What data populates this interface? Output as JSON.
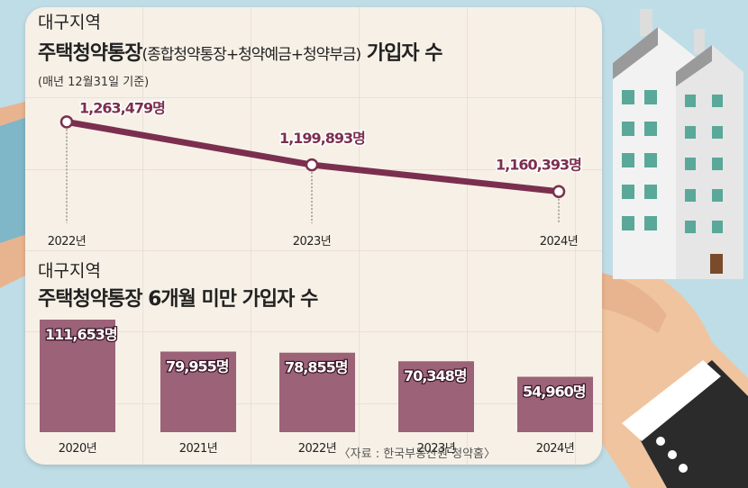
{
  "colors": {
    "background": "#bfdde6",
    "card": "#f7f0e6",
    "accent": "#7b2f4f",
    "bar": "#9b6278"
  },
  "chart_data": [
    {
      "type": "line",
      "region": "대구지역",
      "title_main": "주택청약통장",
      "title_paren": "(종합청약통장+청약예금+청약부금)",
      "title_end": " 가입자 수",
      "note": "(매년 12월31일 기준)",
      "x": [
        "2022년",
        "2023년",
        "2024년"
      ],
      "values": [
        1263479,
        1199893,
        1160393
      ],
      "labels": [
        "1,263,479명",
        "1,199,893명",
        "1,160,393명"
      ]
    },
    {
      "type": "bar",
      "region": "대구지역",
      "title": "주택청약통장 6개월 미만 가입자 수",
      "categories": [
        "2020년",
        "2021년",
        "2022년",
        "2023년",
        "2024년"
      ],
      "values": [
        111653,
        79955,
        78855,
        70348,
        54960
      ],
      "labels": [
        "111,653명",
        "79,955명",
        "78,855명",
        "70,348명",
        "54,960명"
      ]
    }
  ],
  "source": "〈자료 : 한국부동산원 청약홈〉"
}
